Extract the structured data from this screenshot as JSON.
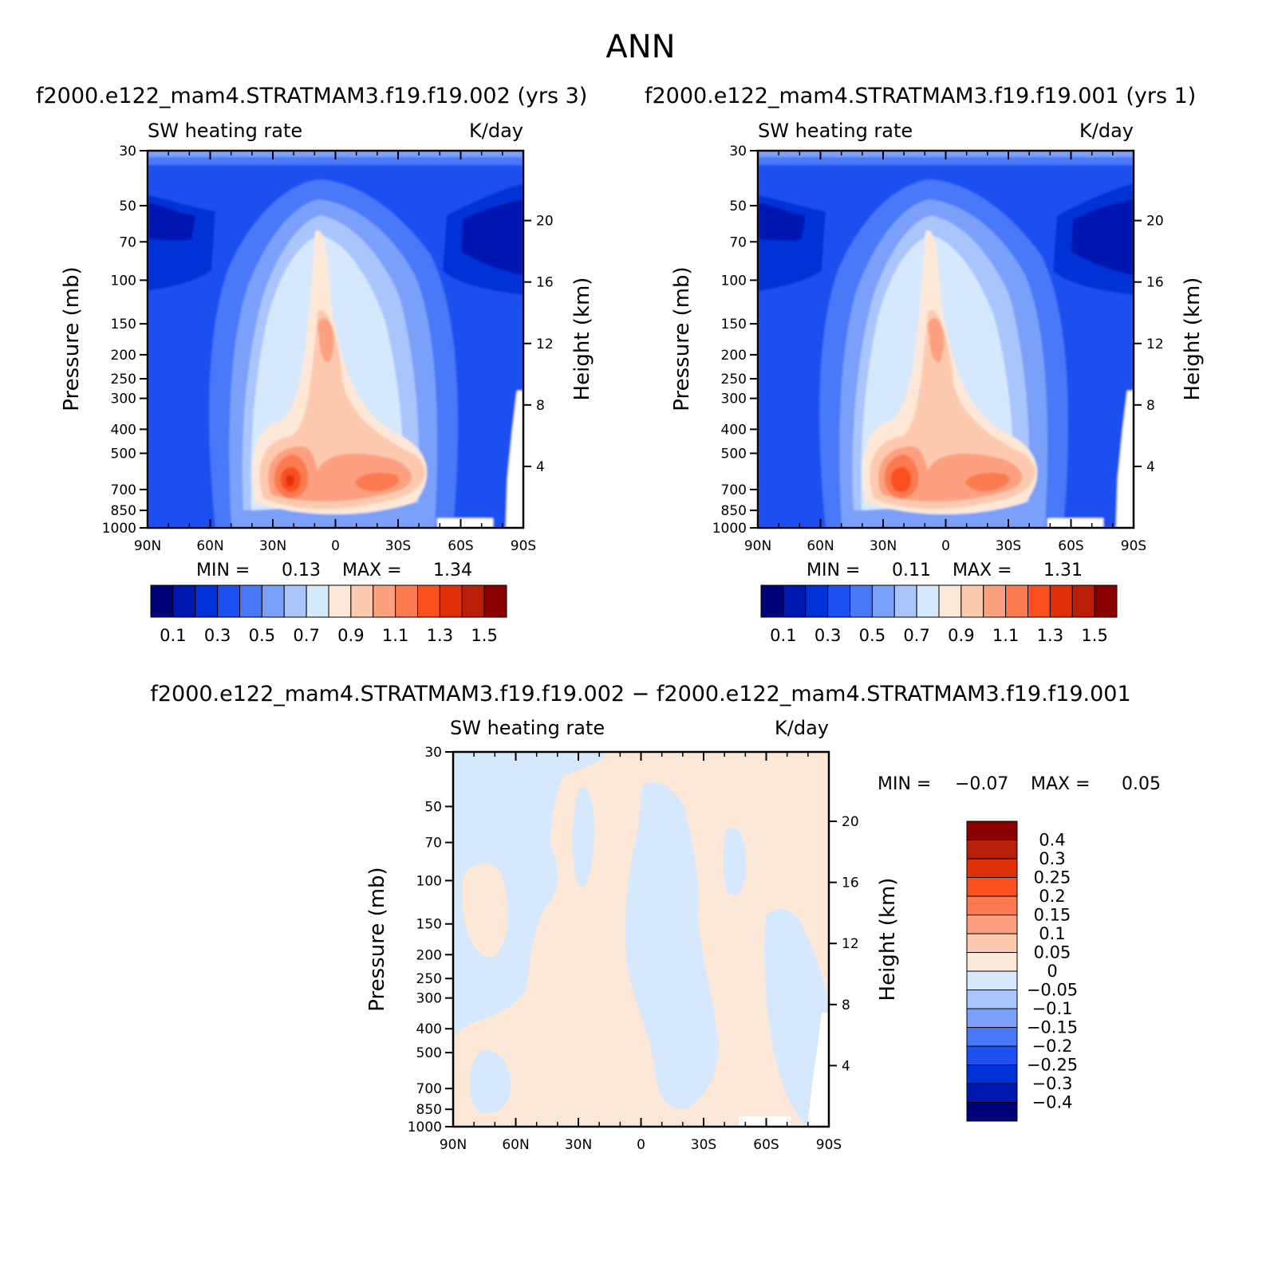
{
  "page_title": "ANN",
  "chart_data": [
    {
      "type": "heatmap",
      "id": "case1",
      "subtitle": "f2000.e122_mam4.STRATMAM3.f19.f19.002 (yrs 3)",
      "title_left": "SW heating rate",
      "title_right": "K/day",
      "xlabel": "",
      "ylabel": "Pressure (mb)",
      "ylabel_right": "Height (km)",
      "x_ticks": [
        "90N",
        "60N",
        "30N",
        "0",
        "30S",
        "60S",
        "90S"
      ],
      "y_ticks": [
        "30",
        "50",
        "70",
        "100",
        "150",
        "200",
        "250",
        "300",
        "400",
        "500",
        "700",
        "850",
        "1000"
      ],
      "y_right_ticks": [
        "20",
        "16",
        "12",
        "8",
        "4"
      ],
      "min_label": "MIN =",
      "min_value": "0.13",
      "max_label": "MAX =",
      "max_value": "1.34",
      "colorbar_labels": [
        "0.1",
        "0.3",
        "0.5",
        "0.7",
        "0.9",
        "1.1",
        "1.3",
        "1.5"
      ],
      "colorbar_colors": [
        "#00007a",
        "#0018b0",
        "#0030d8",
        "#1c50f0",
        "#4878f8",
        "#7aa0fa",
        "#aac4fc",
        "#d6e8fc",
        "#fde8d8",
        "#fdcab0",
        "#fca080",
        "#fb7a50",
        "#fa5020",
        "#e03008",
        "#b81e08",
        "#8a0000"
      ]
    },
    {
      "type": "heatmap",
      "id": "case2",
      "subtitle": "f2000.e122_mam4.STRATMAM3.f19.f19.001 (yrs 1)",
      "title_left": "SW heating rate",
      "title_right": "K/day",
      "xlabel": "",
      "ylabel": "Pressure (mb)",
      "ylabel_right": "Height (km)",
      "x_ticks": [
        "90N",
        "60N",
        "30N",
        "0",
        "30S",
        "60S",
        "90S"
      ],
      "y_ticks": [
        "30",
        "50",
        "70",
        "100",
        "150",
        "200",
        "250",
        "300",
        "400",
        "500",
        "700",
        "850",
        "1000"
      ],
      "y_right_ticks": [
        "20",
        "16",
        "12",
        "8",
        "4"
      ],
      "min_label": "MIN =",
      "min_value": "0.11",
      "max_label": "MAX =",
      "max_value": "1.31",
      "colorbar_labels": [
        "0.1",
        "0.3",
        "0.5",
        "0.7",
        "0.9",
        "1.1",
        "1.3",
        "1.5"
      ],
      "colorbar_colors": [
        "#00007a",
        "#0018b0",
        "#0030d8",
        "#1c50f0",
        "#4878f8",
        "#7aa0fa",
        "#aac4fc",
        "#d6e8fc",
        "#fde8d8",
        "#fdcab0",
        "#fca080",
        "#fb7a50",
        "#fa5020",
        "#e03008",
        "#b81e08",
        "#8a0000"
      ]
    },
    {
      "type": "heatmap",
      "id": "diff",
      "subtitle": "f2000.e122_mam4.STRATMAM3.f19.f19.002 − f2000.e122_mam4.STRATMAM3.f19.f19.001",
      "title_left": "SW heating rate",
      "title_right": "K/day",
      "xlabel": "",
      "ylabel": "Pressure (mb)",
      "ylabel_right": "Height (km)",
      "x_ticks": [
        "90N",
        "60N",
        "30N",
        "0",
        "30S",
        "60S",
        "90S"
      ],
      "y_ticks": [
        "30",
        "50",
        "70",
        "100",
        "150",
        "200",
        "250",
        "300",
        "400",
        "500",
        "700",
        "850",
        "1000"
      ],
      "y_right_ticks": [
        "20",
        "16",
        "12",
        "8",
        "4"
      ],
      "min_label": "MIN =",
      "min_value": "−0.07",
      "max_label": "MAX =",
      "max_value": "0.05",
      "colorbar_labels": [
        "0.4",
        "0.3",
        "0.25",
        "0.2",
        "0.15",
        "0.1",
        "0.05",
        "0",
        "−0.05",
        "−0.1",
        "−0.15",
        "−0.2",
        "−0.25",
        "−0.3",
        "−0.4"
      ],
      "colorbar_colors": [
        "#8a0000",
        "#b81e08",
        "#e03008",
        "#fa5020",
        "#fb7a50",
        "#fca080",
        "#fdcab0",
        "#fde8d8",
        "#d6e8fc",
        "#aac4fc",
        "#7aa0fa",
        "#4878f8",
        "#1c50f0",
        "#0030d8",
        "#0018b0",
        "#00007a"
      ]
    }
  ]
}
